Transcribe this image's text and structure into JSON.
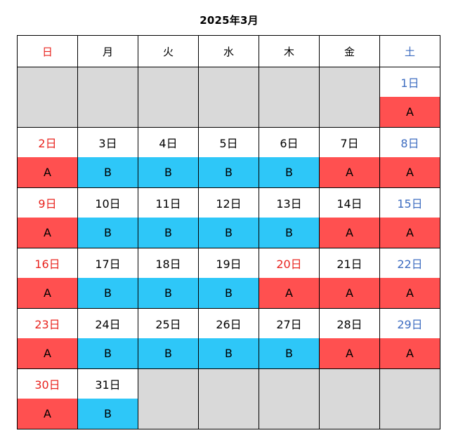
{
  "title": "2025年3月",
  "weekdays": [
    "日",
    "月",
    "火",
    "水",
    "木",
    "金",
    "土"
  ],
  "colors": {
    "shift_A": "#ff5050",
    "shift_B": "#2ec7f8",
    "empty_cell": "#d9d9d9",
    "sunday_text": "#e8231e",
    "saturday_text": "#3d6cc0",
    "holiday_text": "#e8231e"
  },
  "leading_empty_cells": 6,
  "trailing_empty_cells": 5,
  "days": [
    {
      "label": "1日",
      "shift": "A"
    },
    {
      "label": "2日",
      "shift": "A"
    },
    {
      "label": "3日",
      "shift": "B"
    },
    {
      "label": "4日",
      "shift": "B"
    },
    {
      "label": "5日",
      "shift": "B"
    },
    {
      "label": "6日",
      "shift": "B"
    },
    {
      "label": "7日",
      "shift": "A"
    },
    {
      "label": "8日",
      "shift": "A"
    },
    {
      "label": "9日",
      "shift": "A"
    },
    {
      "label": "10日",
      "shift": "B"
    },
    {
      "label": "11日",
      "shift": "B"
    },
    {
      "label": "12日",
      "shift": "B"
    },
    {
      "label": "13日",
      "shift": "B"
    },
    {
      "label": "14日",
      "shift": "A"
    },
    {
      "label": "15日",
      "shift": "A"
    },
    {
      "label": "16日",
      "shift": "A"
    },
    {
      "label": "17日",
      "shift": "B"
    },
    {
      "label": "18日",
      "shift": "B"
    },
    {
      "label": "19日",
      "shift": "B"
    },
    {
      "label": "20日",
      "shift": "A",
      "holiday": true
    },
    {
      "label": "21日",
      "shift": "A"
    },
    {
      "label": "22日",
      "shift": "A"
    },
    {
      "label": "23日",
      "shift": "A"
    },
    {
      "label": "24日",
      "shift": "B"
    },
    {
      "label": "25日",
      "shift": "B"
    },
    {
      "label": "26日",
      "shift": "B"
    },
    {
      "label": "27日",
      "shift": "B"
    },
    {
      "label": "28日",
      "shift": "A"
    },
    {
      "label": "29日",
      "shift": "A"
    },
    {
      "label": "30日",
      "shift": "A"
    },
    {
      "label": "31日",
      "shift": "B"
    }
  ]
}
